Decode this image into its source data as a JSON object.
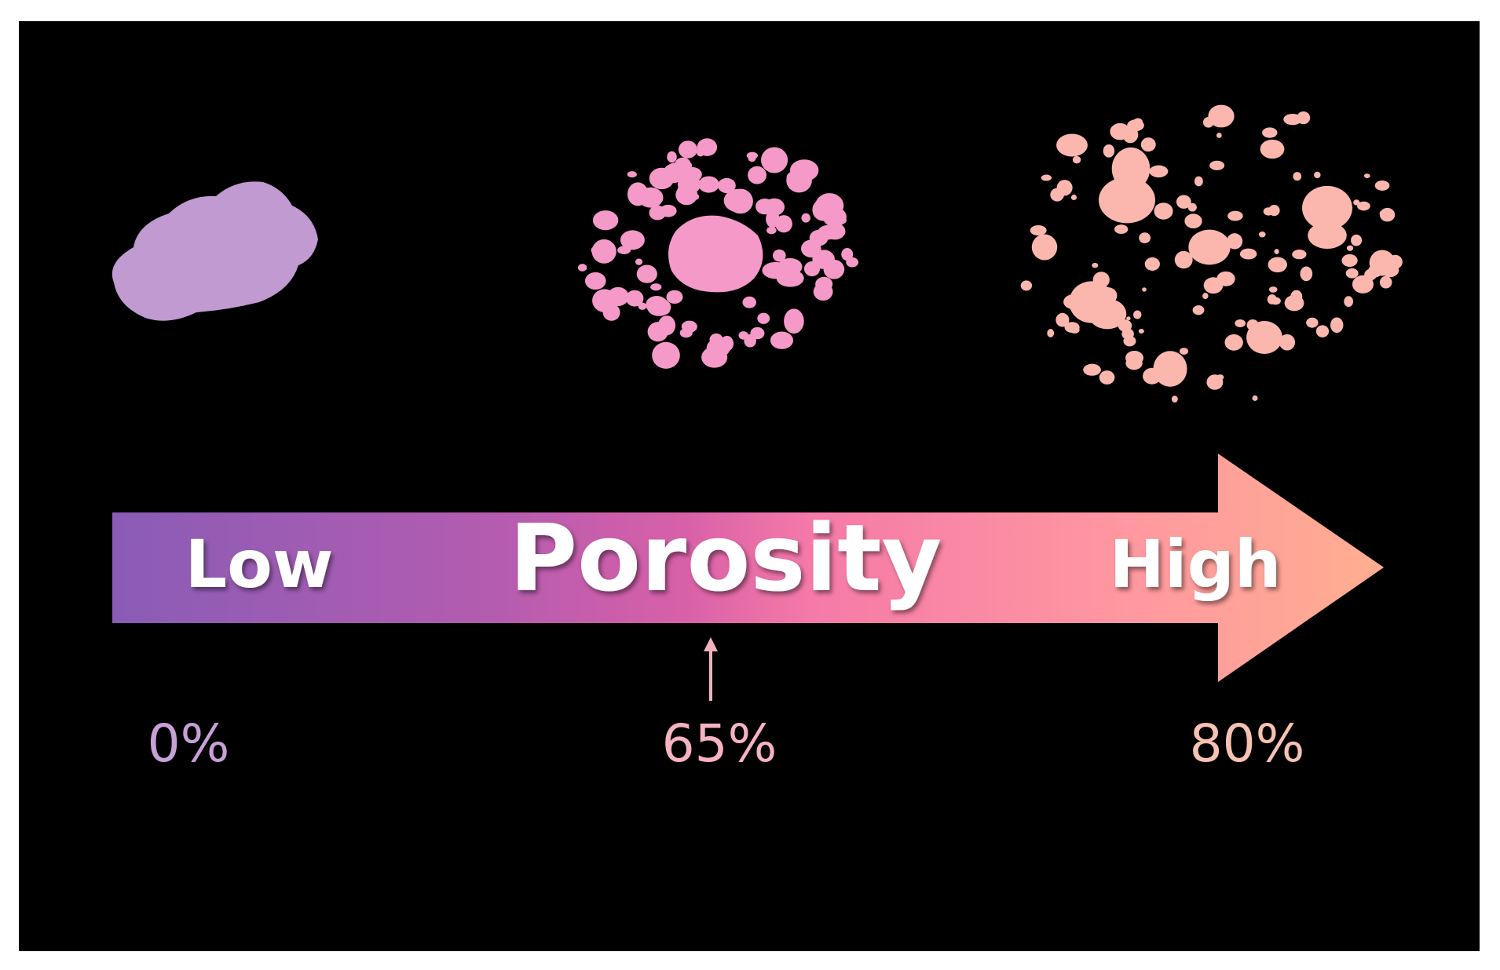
{
  "arrow": {
    "label": "Porosity",
    "low": "Low",
    "high": "High"
  },
  "markers": [
    {
      "label": "0%"
    },
    {
      "label": "65%"
    },
    {
      "label": "80%"
    }
  ]
}
